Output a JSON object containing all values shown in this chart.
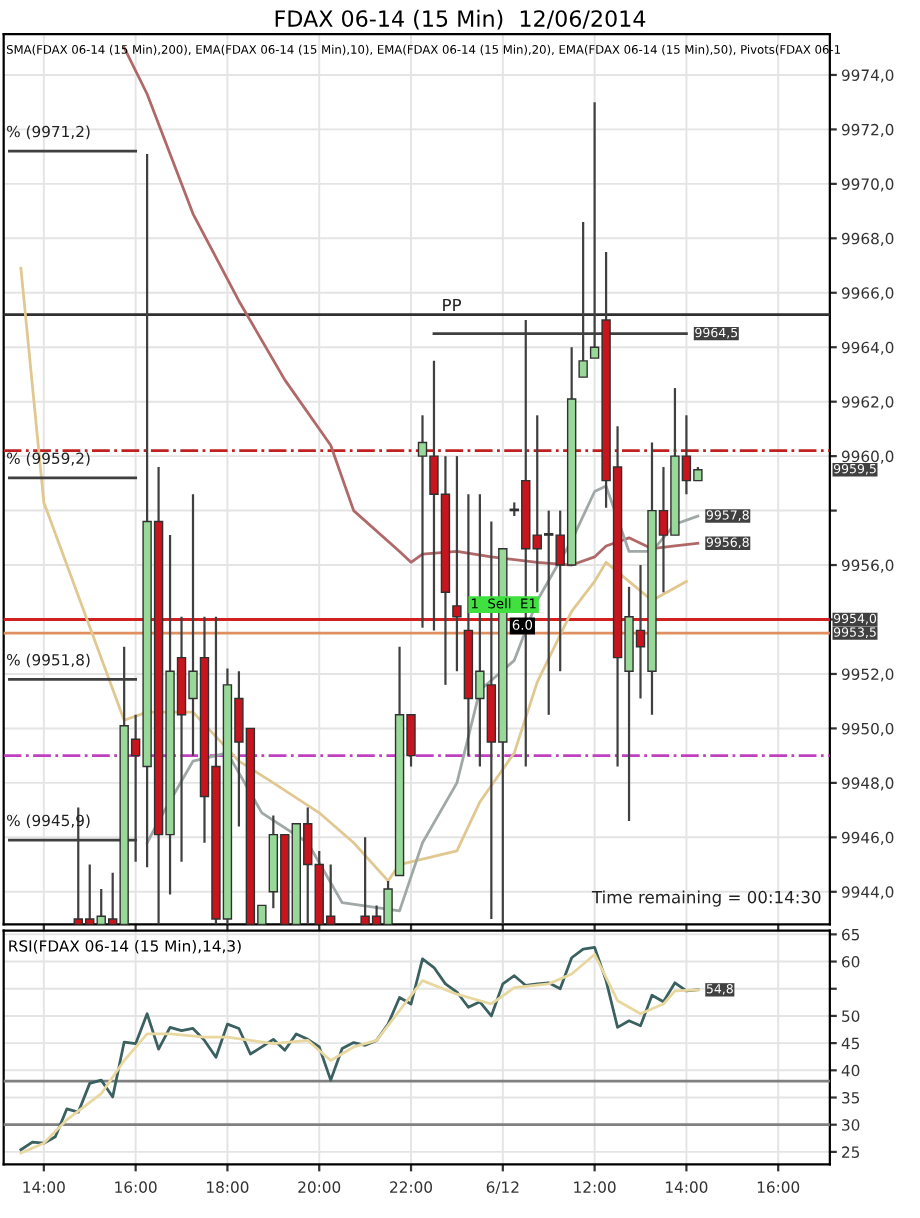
{
  "chart_data": [
    {
      "type": "candlestick",
      "title": "FDAX 06-14 (15 Min)  12/06/2014",
      "subtitle": "SMA(FDAX 06-14 (15 Min),200), EMA(FDAX 06-14 (15 Min),10), EMA(FDAX 06-14 (15 Min),20), EMA(FDAX 06-14 (15 Min),50), Pivots(FDAX 06-1",
      "categories": [
        null,
        null,
        null,
        null,
        null,
        null,
        null,
        null,
        null,
        null,
        null,
        null,
        null,
        null,
        null,
        null,
        null,
        null,
        null,
        null,
        null,
        null,
        null,
        null,
        null,
        null,
        null,
        null,
        null,
        null,
        null,
        null,
        null,
        null,
        null,
        null,
        null,
        null,
        null,
        null,
        null,
        null,
        null,
        null,
        null,
        null,
        null,
        null,
        null,
        null,
        null,
        null,
        null,
        null,
        null,
        null,
        null,
        null,
        null,
        null,
        null,
        null,
        null,
        null,
        null,
        null,
        null,
        null,
        null,
        null,
        null,
        null
      ],
      "ohlc": [
        null,
        null,
        null,
        null,
        null,
        null,
        [
          9943.0,
          9947.1,
          9942.8,
          9942.8
        ],
        [
          9943.0,
          9945.0,
          9942.8,
          9942.8
        ],
        [
          9942.8,
          9944.1,
          9942.8,
          9943.1
        ],
        [
          9943.0,
          9944.7,
          9942.8,
          9942.8
        ],
        [
          9942.8,
          9953.0,
          9942.8,
          9950.1
        ],
        [
          9949.6,
          9950.5,
          9945.1,
          9949.0
        ],
        [
          9948.6,
          9971.1,
          9944.9,
          9957.6
        ],
        [
          9957.6,
          9959.6,
          9942.8,
          9946.1
        ],
        [
          9946.1,
          9957.1,
          9943.9,
          9952.1
        ],
        [
          9952.6,
          9954.1,
          9945.1,
          9950.5
        ],
        [
          9951.1,
          9958.6,
          9949.0,
          9952.1
        ],
        [
          9952.6,
          9954.1,
          9945.8,
          9947.5
        ],
        [
          9948.6,
          9954.1,
          9942.8,
          9943.0
        ],
        [
          9943.0,
          9952.2,
          9942.8,
          9951.6
        ],
        [
          9951.1,
          9952.1,
          9946.4,
          9949.5
        ],
        [
          9950.0,
          9950.0,
          9942.8,
          9942.8
        ],
        [
          9942.8,
          9943.5,
          9942.8,
          9943.5
        ],
        [
          9944.0,
          9946.8,
          9943.4,
          9946.1
        ],
        [
          9946.1,
          9946.1,
          9942.8,
          9942.8
        ],
        [
          9942.8,
          9946.5,
          9942.8,
          9946.5
        ],
        [
          9946.5,
          9947.1,
          9942.8,
          9945.0
        ],
        [
          9945.0,
          9945.5,
          9942.8,
          9942.8
        ],
        [
          9943.1,
          9945.0,
          9942.8,
          9942.8
        ],
        null,
        null,
        [
          9943.1,
          9946.0,
          9942.8,
          9942.8
        ],
        [
          9943.1,
          9943.5,
          9942.8,
          9942.8
        ],
        [
          9942.8,
          9944.4,
          9942.8,
          9944.1
        ],
        [
          9944.6,
          9953.0,
          9944.6,
          9950.5
        ],
        [
          9950.5,
          9950.5,
          9948.6,
          9949.0
        ],
        [
          9960.0,
          9961.5,
          9953.7,
          9960.5
        ],
        [
          9960.0,
          9963.5,
          9953.6,
          9958.6
        ],
        [
          9958.6,
          9960.0,
          9951.6,
          9955.0
        ],
        [
          9954.5,
          9960.0,
          9952.1,
          9954.1
        ],
        [
          9953.6,
          9958.6,
          9949.0,
          9951.1
        ],
        [
          9951.1,
          9958.6,
          9948.6,
          9952.1
        ],
        [
          9951.6,
          9957.6,
          9943.0,
          9949.5
        ],
        [
          9949.5,
          9956.6,
          9942.8,
          9956.6
        ],
        [
          9958.0,
          9958.3,
          9957.8,
          9958.0
        ],
        [
          9959.1,
          9965.0,
          9948.6,
          9956.6
        ],
        [
          9957.1,
          9961.5,
          9955.0,
          9956.6
        ],
        [
          9957.1,
          9958.0,
          9950.5,
          9957.1
        ],
        [
          9957.1,
          9958.0,
          9952.1,
          9956.0
        ],
        [
          9956.0,
          9964.0,
          9956.0,
          9962.1
        ],
        [
          9962.9,
          9968.6,
          9962.9,
          9963.5
        ],
        [
          9963.6,
          9973.0,
          9963.6,
          9964.0
        ],
        [
          9965.0,
          9967.5,
          9958.1,
          9959.1
        ],
        [
          9959.6,
          9961.1,
          9948.6,
          9952.6
        ],
        [
          9952.1,
          9955.2,
          9946.6,
          9954.1
        ],
        [
          9953.6,
          9956.0,
          9951.1,
          9953.0
        ],
        [
          9952.1,
          9960.5,
          9950.5,
          9958.0
        ],
        [
          9958.0,
          9959.6,
          9955.0,
          9957.1
        ],
        [
          9957.1,
          9962.5,
          9957.1,
          9960.0
        ],
        [
          9960.0,
          9961.5,
          9958.6,
          9959.1
        ],
        [
          9959.1,
          9959.6,
          9959.1,
          9959.5
        ],
        null,
        null,
        null,
        null,
        null,
        null,
        null,
        null,
        null,
        null,
        null
      ],
      "colors": [
        null,
        null,
        null,
        null,
        null,
        null,
        "#c8141c",
        "#c8141c",
        "#98d898",
        "#c8141c",
        "#98d898",
        "#c8141c",
        "#98d898",
        "#c8141c",
        "#98d898",
        "#c8141c",
        "#98d898",
        "#c8141c",
        "#c8141c",
        "#98d898",
        "#c8141c",
        "#c8141c",
        "#98d898",
        "#98d898",
        "#c8141c",
        "#98d898",
        "#c8141c",
        "#c8141c",
        "#c8141c",
        null,
        null,
        "#c8141c",
        "#c8141c",
        "#98d898",
        "#98d898",
        "#c8141c",
        "#98d898",
        "#c8141c",
        "#c8141c",
        "#c8141c",
        "#c8141c",
        "#98d898",
        "#c8141c",
        "#98d898",
        "#98d898",
        "#c8141c",
        "#c8141c",
        "#98d898",
        "#c8141c",
        "#98d898",
        "#98d898",
        "#98d898",
        "#c8141c",
        "#c8141c",
        "#98d898",
        "#c8141c",
        "#98d898",
        "#c8141c",
        "#98d898",
        "#c8141c",
        "#98d898",
        null,
        null,
        null,
        null,
        null,
        null,
        null,
        null,
        null,
        null,
        null
      ],
      "series": [
        {
          "type": "line",
          "color": "#b06868",
          "values": [
            null,
            null,
            null,
            null,
            null,
            null,
            null,
            null,
            null,
            null,
            9975.0,
            null,
            9973.3,
            null,
            null,
            null,
            9968.9,
            null,
            null,
            null,
            9965.7,
            null,
            null,
            null,
            9962.8,
            null,
            null,
            null,
            9960.4,
            null,
            9958.0,
            null,
            null,
            null,
            9956.5,
            9956.1,
            9956.4,
            null,
            null,
            9956.5,
            null,
            null,
            9956.3,
            null,
            null,
            null,
            9956.1,
            null,
            null,
            9956.0,
            null,
            9956.3,
            9956.7,
            null,
            9957.0,
            null,
            9956.6,
            null,
            9956.7,
            null,
            9956.8,
            null,
            null,
            null,
            null,
            null,
            null,
            null,
            null,
            null,
            null,
            null
          ],
          "value_labels": [
            null,
            null,
            null,
            null,
            null,
            null,
            null,
            null,
            null,
            null,
            null,
            null,
            null,
            null,
            null,
            null,
            null,
            null,
            null,
            null,
            null,
            null,
            null,
            null,
            null,
            null,
            null,
            null,
            null,
            null,
            null,
            null,
            null,
            null,
            null,
            null,
            null,
            null,
            null,
            null,
            null,
            null,
            null,
            null,
            null,
            null,
            null,
            null,
            null,
            null,
            null,
            null,
            null,
            null,
            null,
            null,
            null,
            null,
            null,
            null,
            "9956,8",
            null,
            null,
            null,
            null,
            null,
            null,
            null,
            null,
            null,
            null,
            null
          ]
        },
        {
          "type": "line",
          "color": "#e0c890",
          "values": [
            null,
            9966.9,
            null,
            9958.3,
            null,
            null,
            null,
            null,
            null,
            null,
            9950.3,
            null,
            9950.6,
            null,
            null,
            null,
            9950.6,
            null,
            null,
            null,
            9948.8,
            null,
            null,
            9948.0,
            null,
            null,
            null,
            9946.9,
            null,
            null,
            9945.8,
            null,
            null,
            9944.4,
            9945.0,
            null,
            null,
            null,
            null,
            9945.5,
            null,
            9947.3,
            null,
            null,
            9949.1,
            null,
            9951.7,
            null,
            null,
            9954.3,
            null,
            9955.4,
            9956.1,
            null,
            9955.4,
            null,
            9954.7,
            null,
            null,
            9955.4,
            null,
            null,
            null,
            null,
            null,
            null,
            null,
            null,
            null,
            null,
            null,
            null
          ]
        },
        {
          "type": "line",
          "color": "#a0a8a8",
          "values": [
            null,
            null,
            null,
            null,
            null,
            null,
            null,
            null,
            null,
            null,
            null,
            null,
            9945.8,
            9946.6,
            null,
            null,
            9948.8,
            null,
            null,
            9949.1,
            null,
            null,
            9946.9,
            null,
            null,
            null,
            9945.8,
            null,
            null,
            9943.6,
            null,
            null,
            null,
            null,
            9943.3,
            null,
            9945.8,
            null,
            null,
            9948.0,
            null,
            9951.4,
            null,
            null,
            9952.5,
            null,
            9954.7,
            null,
            null,
            9956.9,
            null,
            9958.7,
            9958.9,
            null,
            9956.5,
            null,
            9956.5,
            null,
            9957.5,
            null,
            9957.8,
            null,
            null,
            null,
            null,
            null,
            null,
            null,
            null,
            null,
            null,
            null
          ],
          "value_labels": [
            null,
            null,
            null,
            null,
            null,
            null,
            null,
            null,
            null,
            null,
            null,
            null,
            null,
            null,
            null,
            null,
            null,
            null,
            null,
            null,
            null,
            null,
            null,
            null,
            null,
            null,
            null,
            null,
            null,
            null,
            null,
            null,
            null,
            null,
            null,
            null,
            null,
            null,
            null,
            null,
            null,
            null,
            null,
            null,
            null,
            null,
            null,
            null,
            null,
            null,
            null,
            null,
            null,
            null,
            null,
            null,
            null,
            null,
            null,
            null,
            "9957,8",
            null,
            null,
            null,
            null,
            null,
            null,
            null,
            null,
            null,
            null,
            null
          ]
        },
        {
          "type": "line",
          "color": "#404040",
          "values": [
            9971.2,
            null,
            null,
            null,
            null,
            null,
            null,
            null,
            null,
            null,
            null,
            9971.2,
            null,
            null,
            null,
            null,
            null,
            null,
            null,
            null,
            null,
            null,
            null,
            null,
            null,
            null,
            null,
            null,
            null,
            null,
            null,
            null,
            null,
            null,
            null,
            null,
            null,
            null,
            null,
            null,
            null,
            null,
            null,
            null,
            null,
            null,
            null,
            null,
            null,
            null,
            null,
            null,
            null,
            null,
            null,
            null,
            null,
            null,
            null,
            null,
            null,
            null,
            null,
            null,
            null,
            null,
            null,
            null,
            null,
            null,
            null,
            null
          ]
        },
        {
          "type": "line",
          "color": "#404040",
          "values": [
            9959.2,
            null,
            null,
            null,
            null,
            null,
            null,
            null,
            null,
            null,
            null,
            9959.2,
            null,
            null,
            null,
            null,
            null,
            null,
            null,
            null,
            null,
            null,
            null,
            null,
            null,
            null,
            null,
            null,
            null,
            null,
            null,
            null,
            null,
            null,
            null,
            null,
            null,
            null,
            null,
            null,
            null,
            null,
            null,
            null,
            null,
            null,
            null,
            null,
            null,
            null,
            null,
            null,
            null,
            null,
            null,
            null,
            null,
            null,
            null,
            null,
            null,
            null,
            null,
            null,
            null,
            null,
            null,
            null,
            null,
            null,
            null,
            null
          ]
        },
        {
          "type": "line",
          "color": "#404040",
          "values": [
            9951.8,
            null,
            null,
            null,
            null,
            null,
            null,
            null,
            null,
            null,
            null,
            9951.8,
            null,
            null,
            null,
            null,
            null,
            null,
            null,
            null,
            null,
            null,
            null,
            null,
            null,
            null,
            null,
            null,
            null,
            null,
            null,
            null,
            null,
            null,
            null,
            null,
            null,
            null,
            null,
            null,
            null,
            null,
            null,
            null,
            null,
            null,
            null,
            null,
            null,
            null,
            null,
            null,
            null,
            null,
            null,
            null,
            null,
            null,
            null,
            null,
            null,
            null,
            null,
            null,
            null,
            null,
            null,
            null,
            null,
            null,
            null,
            null
          ]
        },
        {
          "type": "line",
          "color": "#404040",
          "values": [
            9945.9,
            null,
            null,
            null,
            null,
            null,
            null,
            null,
            null,
            null,
            null,
            9945.9,
            null,
            null,
            null,
            null,
            null,
            null,
            null,
            null,
            null,
            null,
            null,
            null,
            null,
            null,
            null,
            null,
            null,
            null,
            null,
            null,
            null,
            null,
            null,
            null,
            null,
            null,
            null,
            null,
            null,
            null,
            null,
            null,
            null,
            null,
            null,
            null,
            null,
            null,
            null,
            null,
            null,
            null,
            null,
            null,
            null,
            null,
            null,
            null,
            null,
            null,
            null,
            null,
            null,
            null,
            null,
            null,
            null,
            null,
            null,
            null
          ]
        },
        {
          "type": "line",
          "color": "#404040",
          "values": [
            null,
            null,
            null,
            null,
            null,
            null,
            null,
            null,
            null,
            null,
            null,
            null,
            null,
            null,
            null,
            null,
            null,
            null,
            null,
            null,
            null,
            null,
            null,
            null,
            null,
            null,
            null,
            null,
            null,
            null,
            null,
            null,
            null,
            null,
            null,
            null,
            null,
            9964.5,
            null,
            null,
            null,
            null,
            null,
            null,
            null,
            null,
            null,
            null,
            null,
            null,
            null,
            null,
            null,
            null,
            null,
            null,
            null,
            null,
            null,
            9964.5,
            null,
            null,
            null,
            null,
            null,
            null,
            null,
            null,
            null,
            null,
            null,
            null
          ],
          "value_labels": [
            null,
            null,
            null,
            null,
            null,
            null,
            null,
            null,
            null,
            null,
            null,
            null,
            null,
            null,
            null,
            null,
            null,
            null,
            null,
            null,
            null,
            null,
            null,
            null,
            null,
            null,
            null,
            null,
            null,
            null,
            null,
            null,
            null,
            null,
            null,
            null,
            null,
            null,
            null,
            null,
            null,
            null,
            null,
            null,
            null,
            null,
            null,
            null,
            null,
            null,
            null,
            null,
            null,
            null,
            null,
            null,
            null,
            null,
            null,
            "9964,5",
            null,
            null,
            null,
            null,
            null,
            null,
            null,
            null,
            null,
            null,
            null,
            null
          ]
        }
      ],
      "ref_lines": [
        {
          "axis": "y",
          "value": 9965.2,
          "color": "#303030",
          "line_style": "solid"
        },
        {
          "axis": "y",
          "value": 9960.2,
          "color": "#c02020",
          "line_style": "dashdot"
        },
        {
          "axis": "y",
          "value": 9949.0,
          "color": "#c040c0",
          "line_style": "dashdot"
        },
        {
          "axis": "y",
          "value": 9954.0,
          "color": "#d02020",
          "line_style": "solid",
          "label": "9954,0"
        },
        {
          "axis": "y",
          "value": 9953.5,
          "color": "#e09060",
          "line_style": "solid",
          "label": "9953,5"
        }
      ],
      "annotations": [
        {
          "text": "% (9971,2)",
          "y": 9971.2
        },
        {
          "text": "% (9959,2)",
          "y": 9959.2
        },
        {
          "text": "% (9951,8)",
          "y": 9951.8
        },
        {
          "text": "% (9945,9)",
          "y": 9945.9
        },
        "PP",
        "1  Sell  E1",
        "6.0",
        "Time remaining = 00:14:30"
      ],
      "value_labels": [
        null,
        null,
        null,
        null,
        null,
        null,
        null,
        null,
        null,
        null,
        null,
        null,
        null,
        null,
        null,
        null,
        null,
        null,
        null,
        null,
        null,
        null,
        null,
        null,
        null,
        null,
        null,
        null,
        null,
        null,
        null,
        null,
        null,
        null,
        null,
        null,
        null,
        null,
        null,
        null,
        null,
        null,
        null,
        null,
        null,
        null,
        null,
        null,
        null,
        null,
        null,
        null,
        null,
        null,
        null,
        null,
        null,
        null,
        null,
        null,
        "9959,5",
        null,
        null,
        null,
        null,
        null,
        null,
        null,
        null,
        null,
        null,
        null
      ],
      "ylim": [
        9942.8,
        9975.5
      ],
      "yticks": [
        {
          "value": 9944,
          "label": "9944,0"
        },
        {
          "value": 9946,
          "label": "9946,0"
        },
        {
          "value": 9948,
          "label": "9948,0"
        },
        {
          "value": 9950,
          "label": "9950,0"
        },
        {
          "value": 9952,
          "label": "9952,0"
        },
        {
          "value": 9954,
          "label": null
        },
        {
          "value": 9956,
          "label": "9956,0"
        },
        {
          "value": 9958,
          "label": null
        },
        {
          "value": 9960,
          "label": "9960,0"
        },
        {
          "value": 9962,
          "label": "9962,0"
        },
        {
          "value": 9964,
          "label": "9964,0"
        },
        {
          "value": 9966,
          "label": "9966,0"
        },
        {
          "value": 9968,
          "label": "9968,0"
        },
        {
          "value": 9970,
          "label": "9970,0"
        },
        {
          "value": 9972,
          "label": "9972,0"
        },
        {
          "value": 9974,
          "label": "9974,0"
        }
      ],
      "tick_labels": "y",
      "grid": true
    },
    {
      "type": "line",
      "title": "RSI(FDAX 06-14 (15 Min),14,3)",
      "categories": [
        null,
        null,
        null,
        "14:00",
        null,
        null,
        null,
        null,
        null,
        null,
        null,
        "16:00",
        null,
        null,
        null,
        null,
        null,
        null,
        null,
        "18:00",
        null,
        null,
        null,
        null,
        null,
        null,
        null,
        "20:00",
        null,
        null,
        null,
        null,
        null,
        null,
        null,
        "22:00",
        null,
        null,
        null,
        null,
        null,
        null,
        null,
        "6/12",
        null,
        null,
        null,
        null,
        null,
        null,
        null,
        "12:00",
        null,
        null,
        null,
        null,
        null,
        null,
        null,
        "14:00",
        null,
        null,
        null,
        null,
        null,
        null,
        null,
        "16:00",
        null,
        null,
        null,
        null
      ],
      "series": [
        {
          "color": "#3a6060",
          "values": [
            null,
            25.4,
            26.8,
            26.6,
            27.8,
            32.9,
            32.3,
            37.6,
            38.2,
            35.1,
            45.2,
            44.9,
            50.4,
            43.9,
            47.9,
            47.3,
            47.7,
            45.5,
            42.4,
            48.5,
            47.7,
            43.0,
            44.3,
            45.7,
            43.7,
            46.7,
            45.7,
            44.3,
            38.2,
            44.0,
            45.1,
            44.6,
            45.5,
            48.5,
            53.4,
            52.2,
            60.5,
            58.9,
            55.9,
            54.4,
            51.6,
            52.6,
            50.0,
            55.9,
            57.4,
            55.6,
            55.9,
            56.1,
            55.0,
            60.7,
            62.3,
            62.6,
            56.5,
            47.9,
            49.1,
            48.2,
            53.8,
            52.6,
            56.1,
            54.6,
            54.8,
            null,
            null,
            null,
            null,
            null,
            null,
            null,
            null,
            null,
            null,
            null
          ],
          "value_labels": [
            null,
            null,
            null,
            null,
            null,
            null,
            null,
            null,
            null,
            null,
            null,
            null,
            null,
            null,
            null,
            null,
            null,
            null,
            null,
            null,
            null,
            null,
            null,
            null,
            null,
            null,
            null,
            null,
            null,
            null,
            null,
            null,
            null,
            null,
            null,
            null,
            null,
            null,
            null,
            null,
            null,
            null,
            null,
            null,
            null,
            null,
            null,
            null,
            null,
            null,
            null,
            null,
            null,
            null,
            null,
            null,
            null,
            null,
            null,
            null,
            "54,8",
            null,
            null,
            null,
            null,
            null,
            null,
            null,
            null,
            null,
            null,
            null
          ]
        },
        {
          "color": "#e8d8a0",
          "values": [
            null,
            24.8,
            null,
            26.6,
            null,
            30.9,
            null,
            null,
            35.7,
            null,
            41.8,
            null,
            46.7,
            null,
            46.7,
            null,
            null,
            46.1,
            null,
            46.1,
            null,
            45.5,
            null,
            44.9,
            null,
            null,
            45.5,
            null,
            41.8,
            null,
            44.3,
            null,
            45.5,
            null,
            51.0,
            null,
            56.5,
            null,
            null,
            54.0,
            null,
            null,
            52.2,
            null,
            55.2,
            null,
            null,
            55.9,
            null,
            57.7,
            null,
            61.3,
            null,
            52.8,
            null,
            50.4,
            null,
            52.2,
            54.6,
            null,
            54.8,
            null,
            null,
            null,
            null,
            null,
            null,
            null,
            null,
            null,
            null,
            null
          ]
        }
      ],
      "ref_lines": [
        {
          "axis": "y",
          "value": 38,
          "color": "#808080",
          "line_style": "solid"
        },
        {
          "axis": "y",
          "value": 30,
          "color": "#808080",
          "line_style": "solid"
        }
      ],
      "ylim": [
        22.7,
        65.7
      ],
      "yticks": [
        25,
        30,
        35,
        40,
        45,
        50,
        {
          "value": 55,
          "label": null
        },
        60,
        65
      ],
      "grid": true
    }
  ]
}
